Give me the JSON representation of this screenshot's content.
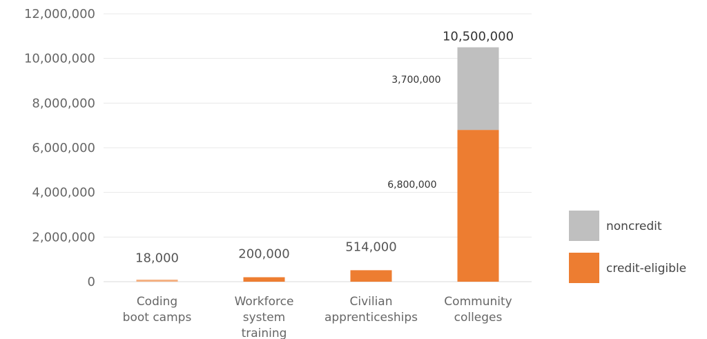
{
  "chart_data": {
    "type": "bar",
    "stacked": true,
    "title": "",
    "xlabel": "",
    "ylabel": "",
    "ylim": [
      0,
      12000000
    ],
    "yticks": [
      0,
      2000000,
      4000000,
      6000000,
      8000000,
      10000000,
      12000000
    ],
    "ytick_labels": [
      "0",
      "2,000,000",
      "4,000,000",
      "6,000,000",
      "8,000,000",
      "10,000,000",
      "12,000,000"
    ],
    "grid": true,
    "legend_position": "right",
    "categories": [
      [
        "Coding",
        "boot camps"
      ],
      [
        "Workforce",
        "system",
        "training"
      ],
      [
        "Civilian",
        "apprenticeships"
      ],
      [
        "Community",
        "colleges"
      ]
    ],
    "series": [
      {
        "name": "credit-eligible",
        "color": "#ed7d31",
        "light_color": "#f4b183",
        "values": [
          18000,
          200000,
          514000,
          6800000
        ],
        "labels": [
          "",
          "",
          "",
          "6,800,000"
        ]
      },
      {
        "name": "noncredit",
        "color": "#bfbfbf",
        "values": [
          0,
          0,
          0,
          3700000
        ],
        "labels": [
          "",
          "",
          "",
          "3,700,000"
        ]
      }
    ],
    "totals": [
      18000,
      200000,
      514000,
      10500000
    ],
    "total_labels": [
      "18,000",
      "200,000",
      "514,000",
      "10,500,000"
    ],
    "legend": [
      "noncredit",
      "credit-eligible"
    ]
  }
}
